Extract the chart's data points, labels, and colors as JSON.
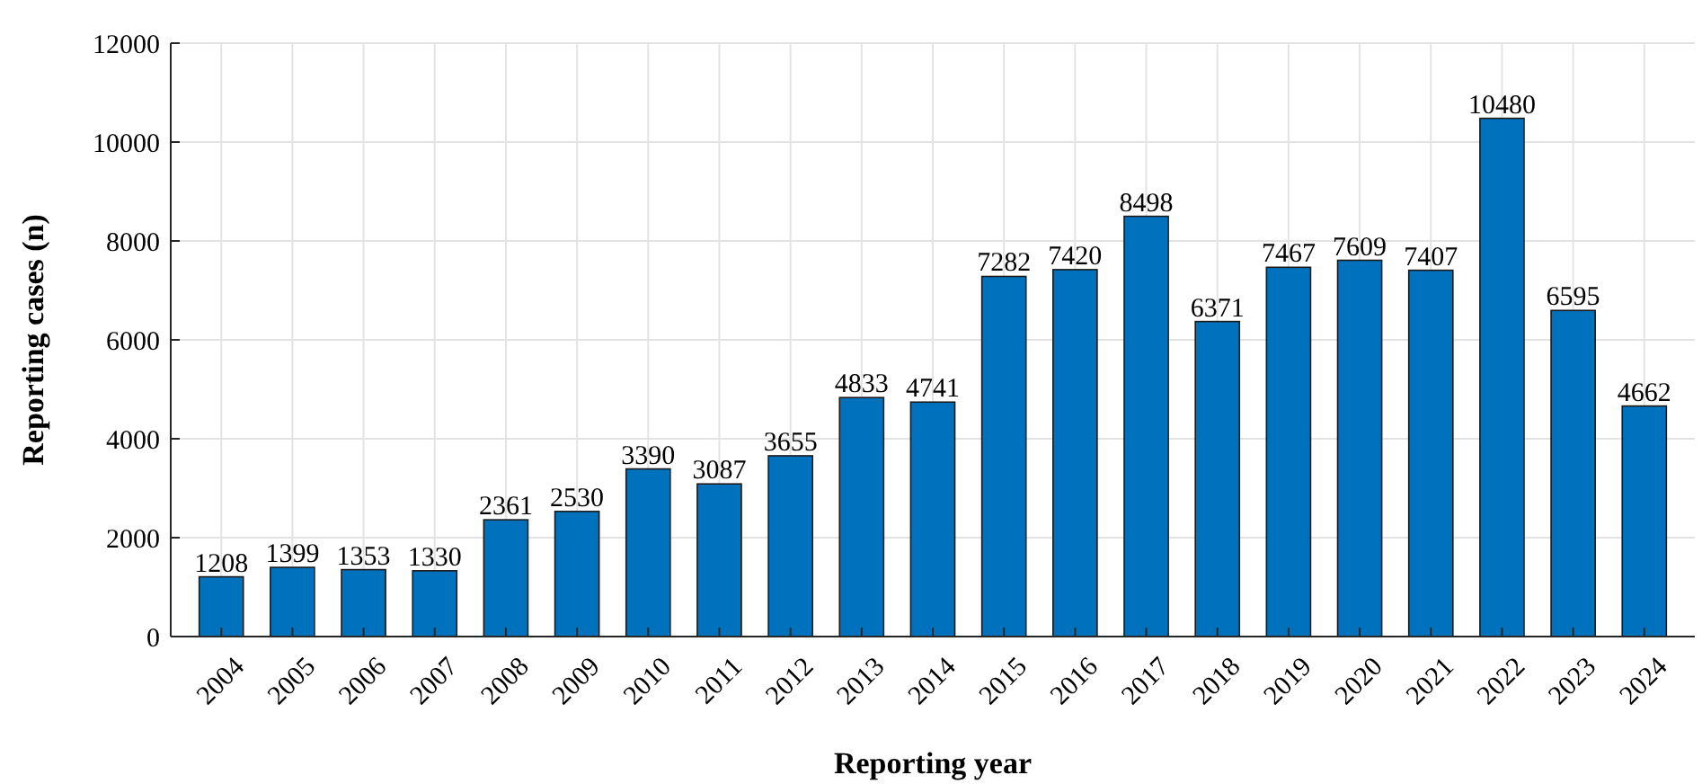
{
  "chart_data": {
    "type": "bar",
    "xlabel": "Reporting year",
    "ylabel": "Reporting cases (n)",
    "categories": [
      "2004",
      "2005",
      "2006",
      "2007",
      "2008",
      "2009",
      "2010",
      "2011",
      "2012",
      "2013",
      "2014",
      "2015",
      "2016",
      "2017",
      "2018",
      "2019",
      "2020",
      "2021",
      "2022",
      "2023",
      "2024"
    ],
    "values": [
      1208,
      1399,
      1353,
      1330,
      2361,
      2530,
      3390,
      3087,
      3655,
      4833,
      4741,
      7282,
      7420,
      8498,
      6371,
      7467,
      7609,
      7407,
      10480,
      6595,
      4662
    ],
    "color": "#0072bd",
    "ylim": [
      0,
      12000
    ],
    "yticks": [
      0,
      2000,
      4000,
      6000,
      8000,
      10000,
      12000
    ],
    "grid": true,
    "data_labels": true
  }
}
